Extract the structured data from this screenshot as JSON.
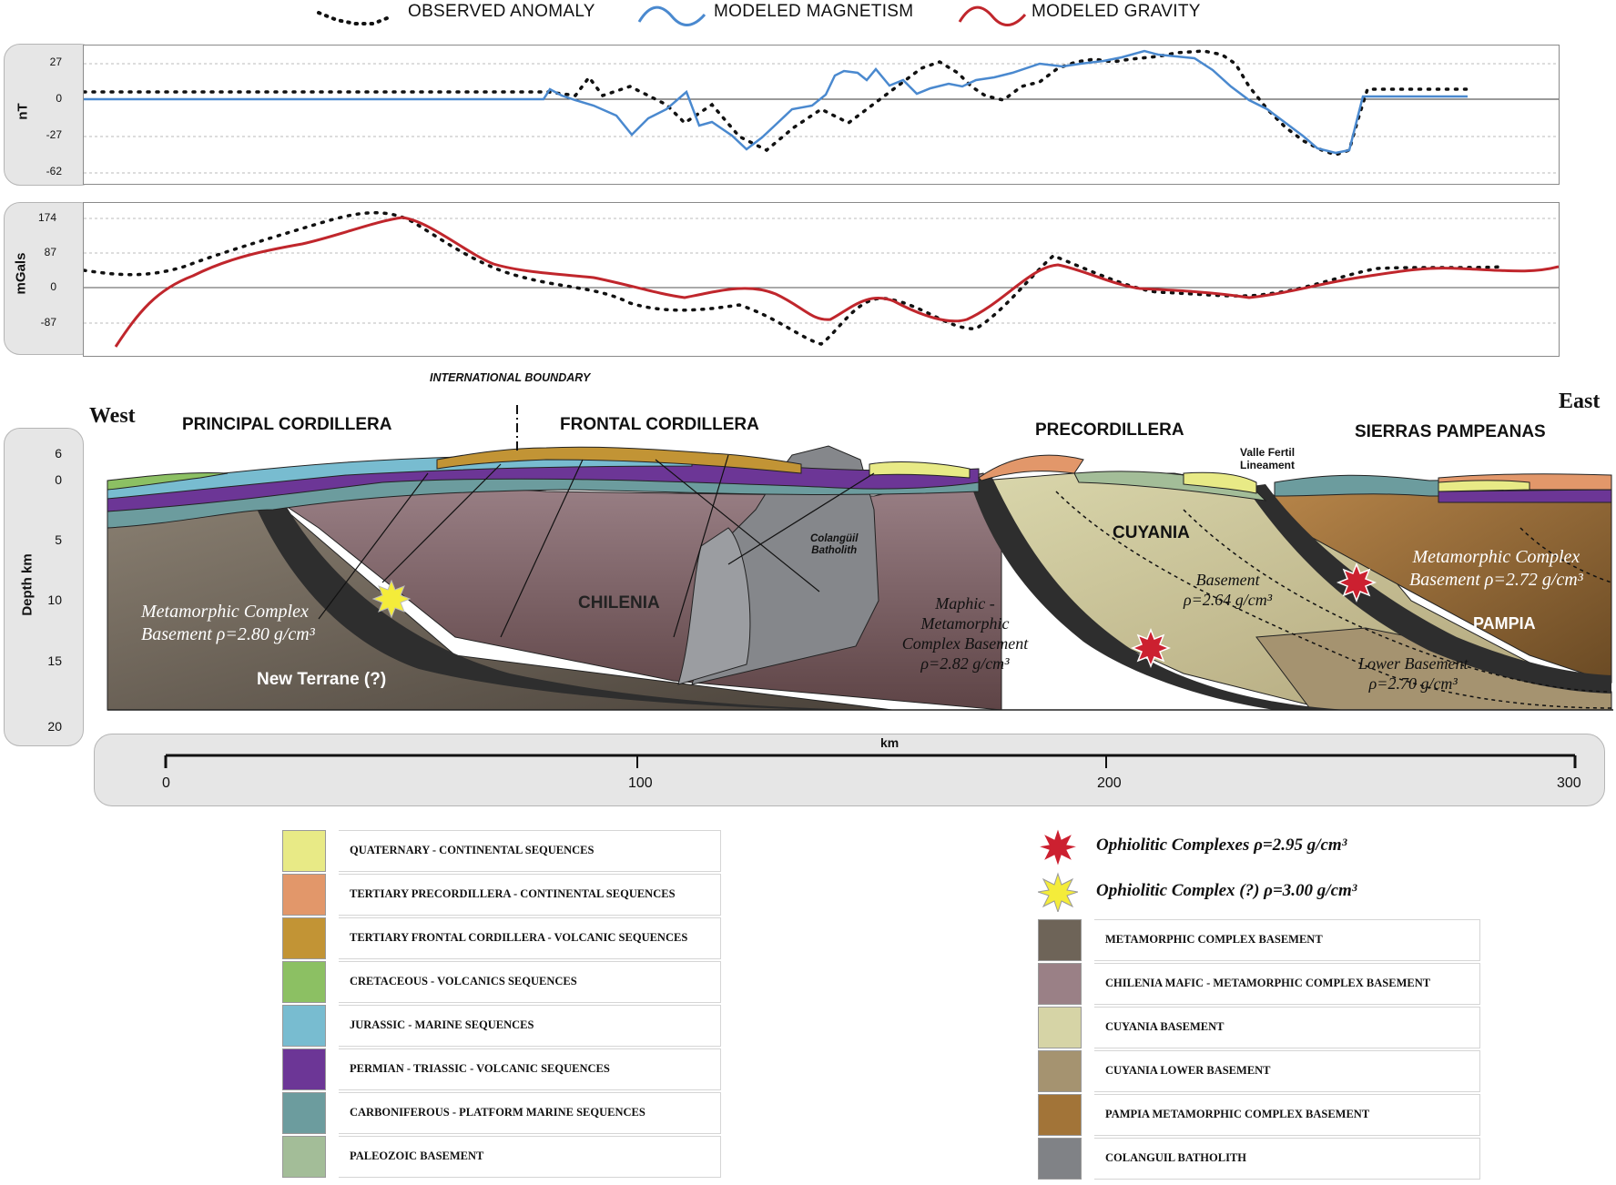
{
  "legend": {
    "observed": "OBSERVED ANOMALY",
    "magnetism": "MODELED MAGNETISM",
    "gravity": "MODELED GRAVITY"
  },
  "magnetic_panel": {
    "unit": "nT",
    "ticks": [
      "27",
      "0",
      "-27",
      "-62"
    ]
  },
  "gravity_panel": {
    "unit": "mGals",
    "ticks": [
      "174",
      "87",
      "0",
      "-87"
    ]
  },
  "section": {
    "intl_boundary": "INTERNATIONAL BOUNDARY",
    "west": "West",
    "east": "East",
    "regions": [
      "PRINCIPAL CORDILLERA",
      "FRONTAL CORDILLERA",
      "PRECORDILLERA",
      "SIERRAS PAMPEANAS"
    ],
    "depth_label": "Depth km",
    "depth_ticks": [
      "6",
      "0",
      "5",
      "10",
      "15",
      "20"
    ],
    "labels": {
      "valle_fertil_1": "Valle Fertil",
      "valle_fertil_2": "Lineament",
      "cuyania": "CUYANIA",
      "chilenia": "CHILENIA",
      "pampia": "PAMPIA",
      "colanguil_1": "Colangüil",
      "colanguil_2": "Batholith",
      "new_terrane": "New Terrane (?)",
      "meta_w_1": "Metamorphic Complex",
      "meta_w_2": "Basement ρ=2.80 g/cm³",
      "maphic_1": "Maphic -",
      "maphic_2": "Metamorphic",
      "maphic_3": "Complex Basement",
      "maphic_4": "ρ=2.82 g/cm³",
      "basement_1": "Basement",
      "basement_2": "ρ=2.64 g/cm³",
      "lower_1": "Lower Basement",
      "lower_2": "ρ=2.70 g/cm³",
      "meta_e_1": "Metamorphic Complex",
      "meta_e_2": "Basement ρ=2.72 g/cm³"
    }
  },
  "scale": {
    "title": "km",
    "ticks": [
      "0",
      "100",
      "200",
      "300"
    ]
  },
  "legend_left": [
    {
      "label": "QUATERNARY - CONTINENTAL SEQUENCES",
      "color": "#e8ea86"
    },
    {
      "label": "TERTIARY PRECORDILLERA - CONTINENTAL SEQUENCES",
      "color": "#e2976a"
    },
    {
      "label": "TERTIARY FRONTAL CORDILLERA - VOLCANIC SEQUENCES",
      "color": "#c29435"
    },
    {
      "label": "CRETACEOUS -  VOLCANICS SEQUENCES",
      "color": "#8cc063"
    },
    {
      "label": "JURASSIC  - MARINE SEQUENCES",
      "color": "#78bcd0"
    },
    {
      "label": "PERMIAN - TRIASSIC - VOLCANIC SEQUENCES",
      "color": "#6c3696"
    },
    {
      "label": "CARBONIFEROUS - PLATFORM MARINE SEQUENCES",
      "color": "#6c9c9e"
    },
    {
      "label": "PALEOZOIC BASEMENT",
      "color": "#a3bd98"
    }
  ],
  "legend_right_symbols": [
    {
      "label": "Ophiolitic Complexes ρ=2.95 g/cm³",
      "color": "#cc2030"
    },
    {
      "label": "Ophiolitic Complex (?) ρ=3.00 g/cm³",
      "color": "#f4ec3a"
    }
  ],
  "legend_right": [
    {
      "label": "METAMORPHIC COMPLEX BASEMENT",
      "color": "#6e6458"
    },
    {
      "label": "CHILENIA MAFIC - METAMORPHIC COMPLEX BASEMENT",
      "color": "#9a8086"
    },
    {
      "label": "CUYANIA BASEMENT",
      "color": "#d6d4a6"
    },
    {
      "label": "CUYANIA LOWER BASEMENT",
      "color": "#a59370"
    },
    {
      "label": "PAMPIA METAMORPHIC COMPLEX BASEMENT",
      "color": "#a27438"
    },
    {
      "label": "COLANGUIL BATHOLITH",
      "color": "#808286"
    }
  ]
}
